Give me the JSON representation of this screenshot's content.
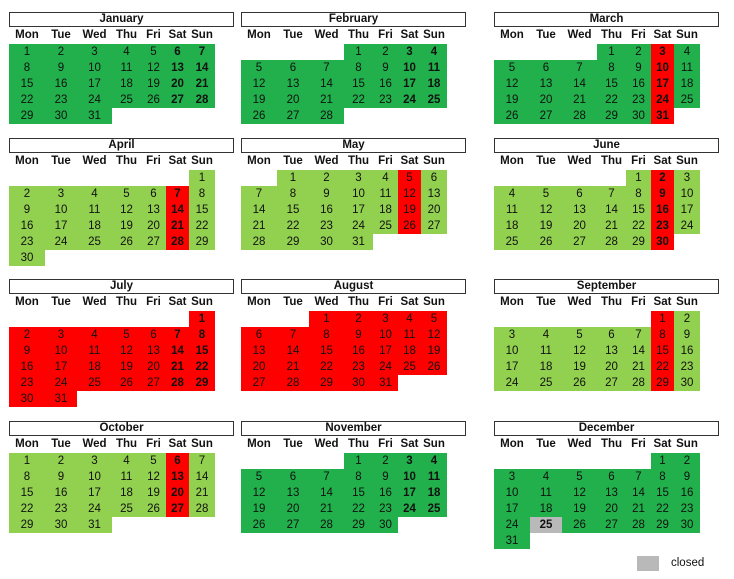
{
  "weekdays": [
    "Mon",
    "Tue",
    "Wed",
    "Thu",
    "Fri",
    "Sat",
    "Sun"
  ],
  "colors": {
    "dark_green": "#21b04b",
    "light_green": "#92d050",
    "red": "#ff0000",
    "closed_gray": "#b9b9b9"
  },
  "months": [
    {
      "name": "January",
      "offset": 0,
      "days": 31,
      "color": "dark_green",
      "red_days": [],
      "bold_sat": true,
      "bold_sun": true
    },
    {
      "name": "February",
      "offset": 3,
      "days": 28,
      "color": "dark_green",
      "red_days": [],
      "bold_sat": true,
      "bold_sun": true
    },
    {
      "name": "March",
      "offset": 3,
      "days": 31,
      "color": "dark_green",
      "red_days": [
        3,
        10,
        17,
        24,
        31
      ],
      "bold_sat": true,
      "bold_sun": false
    },
    {
      "name": "April",
      "offset": 6,
      "days": 30,
      "color": "light_green",
      "red_days": [
        7,
        14,
        21,
        28
      ],
      "bold_sat": true,
      "bold_sun": false
    },
    {
      "name": "May",
      "offset": 1,
      "days": 31,
      "color": "light_green",
      "red_days": [
        5,
        12,
        19,
        26
      ],
      "bold_sat": false,
      "bold_sun": false
    },
    {
      "name": "June",
      "offset": 4,
      "days": 30,
      "color": "light_green",
      "red_days": [
        2,
        9,
        16,
        23,
        30
      ],
      "bold_sat": true,
      "bold_sun": false
    },
    {
      "name": "July",
      "offset": 6,
      "days": 31,
      "color": "red",
      "red_days": [],
      "bold_sat": true,
      "bold_sun": true
    },
    {
      "name": "August",
      "offset": 2,
      "days": 31,
      "color": "red",
      "red_days": [],
      "bold_sat": false,
      "bold_sun": false
    },
    {
      "name": "September",
      "offset": 5,
      "days": 30,
      "color": "light_green",
      "red_days": [
        1,
        8,
        15,
        22,
        29
      ],
      "bold_sat": false,
      "bold_sun": false
    },
    {
      "name": "October",
      "offset": 0,
      "days": 31,
      "color": "light_green",
      "red_days": [
        6,
        13,
        20,
        27
      ],
      "bold_sat": true,
      "bold_sun": false
    },
    {
      "name": "November",
      "offset": 3,
      "days": 30,
      "color": "dark_green",
      "red_days": [],
      "bold_sat": true,
      "bold_sun": true
    },
    {
      "name": "December",
      "offset": 5,
      "days": 31,
      "color": "dark_green",
      "red_days": [],
      "bold_sat": false,
      "bold_sun": false,
      "closed_days": [
        25
      ]
    }
  ],
  "legend": {
    "label": "closed"
  }
}
